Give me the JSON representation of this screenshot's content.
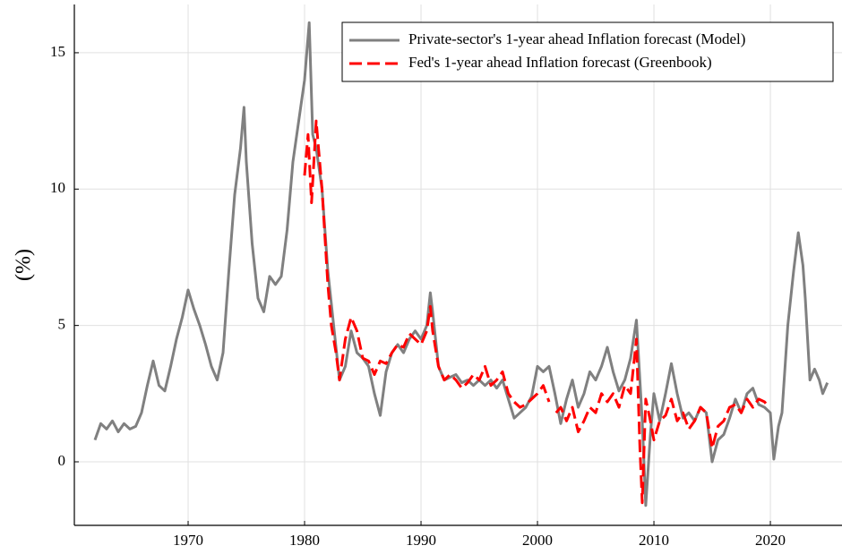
{
  "chart_data": {
    "type": "line",
    "ylabel": "(%)",
    "xlim": [
      1960.23,
      2026.15
    ],
    "ylim": [
      -2.33,
      16.77
    ],
    "xticks": [
      1970,
      1980,
      1990,
      2000,
      2010,
      2020
    ],
    "yticks": [
      0,
      5,
      10,
      15
    ],
    "grid": true,
    "legend": "upper right",
    "series": [
      {
        "name": "Private-sector's 1-year ahead Inflation forecast (Model)",
        "color": "#808080",
        "style": "solid",
        "x": [
          1962.0,
          1962.5,
          1963,
          1963.5,
          1964,
          1964.5,
          1965,
          1965.5,
          1966,
          1966.5,
          1967,
          1967.5,
          1968,
          1968.5,
          1969,
          1969.5,
          1970,
          1970.5,
          1971,
          1971.5,
          1972,
          1972.5,
          1973,
          1973.5,
          1974,
          1974.5,
          1974.8,
          1975,
          1975.5,
          1976,
          1976.5,
          1977,
          1977.5,
          1978,
          1978.5,
          1979,
          1979.5,
          1980,
          1980.4,
          1980.7,
          1981,
          1981.5,
          1982,
          1982.5,
          1983,
          1983.5,
          1984,
          1984.5,
          1985,
          1985.5,
          1986,
          1986.5,
          1987,
          1987.5,
          1988,
          1988.5,
          1989,
          1989.5,
          1990,
          1990.5,
          1990.8,
          1991,
          1991.5,
          1992,
          1992.5,
          1993,
          1993.5,
          1994,
          1994.5,
          1995,
          1995.5,
          1996,
          1996.5,
          1997,
          1997.5,
          1998,
          1998.5,
          1999,
          1999.5,
          2000,
          2000.5,
          2001,
          2001.5,
          2002,
          2002.5,
          2003,
          2003.5,
          2004,
          2004.5,
          2005,
          2005.5,
          2006,
          2006.5,
          2007,
          2007.5,
          2008,
          2008.5,
          2009,
          2009.3,
          2009.7,
          2010,
          2010.5,
          2011,
          2011.5,
          2012,
          2012.5,
          2013,
          2013.5,
          2014,
          2014.5,
          2015,
          2015.5,
          2016,
          2016.5,
          2017,
          2017.5,
          2018,
          2018.5,
          2019,
          2019.5,
          2020,
          2020.3,
          2020.7,
          2021,
          2021.5,
          2022,
          2022.4,
          2022.8,
          2023,
          2023.4,
          2023.8,
          2024.2,
          2024.5,
          2024.9
        ],
        "values": [
          0.8,
          1.4,
          1.2,
          1.5,
          1.1,
          1.4,
          1.2,
          1.3,
          1.8,
          2.8,
          3.7,
          2.8,
          2.6,
          3.5,
          4.5,
          5.3,
          6.3,
          5.6,
          5.0,
          4.3,
          3.5,
          3.0,
          4.0,
          7.0,
          9.8,
          11.5,
          13.0,
          11.0,
          8.0,
          6.0,
          5.5,
          6.8,
          6.5,
          6.8,
          8.5,
          11.0,
          12.5,
          14.0,
          16.1,
          12.0,
          11.5,
          10.0,
          7.0,
          5.0,
          3.0,
          3.5,
          4.8,
          4.0,
          3.8,
          3.5,
          2.5,
          1.7,
          3.3,
          4.0,
          4.3,
          4.0,
          4.5,
          4.8,
          4.5,
          5.0,
          6.2,
          5.5,
          3.5,
          3.0,
          3.1,
          3.2,
          2.9,
          3.0,
          2.8,
          3.0,
          2.8,
          3.0,
          2.7,
          3.0,
          2.3,
          1.6,
          1.8,
          2.0,
          2.4,
          3.5,
          3.3,
          3.5,
          2.5,
          1.4,
          2.3,
          3.0,
          2.0,
          2.5,
          3.3,
          3.0,
          3.5,
          4.2,
          3.3,
          2.6,
          3.0,
          3.8,
          5.2,
          1.5,
          -1.6,
          1.0,
          2.5,
          1.5,
          2.5,
          3.6,
          2.5,
          1.6,
          1.8,
          1.5,
          2.0,
          1.8,
          0.0,
          0.8,
          1.0,
          1.6,
          2.3,
          1.8,
          2.5,
          2.7,
          2.1,
          2.0,
          1.8,
          0.1,
          1.3,
          1.8,
          5.0,
          7.0,
          8.4,
          7.2,
          6.0,
          3.0,
          3.4,
          3.0,
          2.5,
          2.9
        ]
      },
      {
        "name": "Fed's 1-year ahead Inflation forecast (Greenbook)",
        "color": "#ff0000",
        "style": "dashed",
        "x": [
          1980.0,
          1980.3,
          1980.6,
          1981,
          1981.5,
          1982,
          1982.3,
          1982.7,
          1983,
          1983.5,
          1984,
          1984.5,
          1985,
          1985.5,
          1986,
          1986.5,
          1987,
          1987.5,
          1988,
          1988.5,
          1989,
          1989.5,
          1990,
          1990.5,
          1990.8,
          1991,
          1991.5,
          1992,
          1992.5,
          1993,
          1993.5,
          1994,
          1994.5,
          1995,
          1995.5,
          1996,
          1996.5,
          1997,
          1997.5,
          1998,
          1998.5,
          1999,
          1999.5,
          2000,
          2000.5,
          2001,
          2001.2,
          2001.6,
          2002,
          2002.5,
          2003,
          2003.5,
          2004,
          2004.5,
          2005,
          2005.5,
          2006,
          2006.5,
          2007,
          2007.5,
          2008,
          2008.5,
          2008.8,
          2009,
          2009.3,
          2009.7,
          2010,
          2010.5,
          2011,
          2011.5,
          2012,
          2012.5,
          2013,
          2013.5,
          2014,
          2014.5,
          2015,
          2015.5,
          2016,
          2016.5,
          2017,
          2017.5,
          2018,
          2018.5,
          2019,
          2019.5,
          2019.9
        ],
        "values": [
          10.5,
          12.0,
          9.5,
          12.5,
          10.0,
          6.5,
          5.0,
          4.0,
          3.0,
          4.5,
          5.3,
          4.8,
          3.8,
          3.7,
          3.2,
          3.7,
          3.6,
          4.0,
          4.3,
          4.2,
          4.7,
          4.5,
          4.3,
          4.8,
          5.7,
          4.8,
          3.5,
          3.0,
          3.2,
          3.0,
          2.7,
          2.9,
          3.2,
          3.0,
          3.5,
          2.8,
          3.0,
          3.3,
          2.5,
          2.2,
          2.0,
          2.1,
          2.3,
          2.5,
          2.8,
          2.2,
          null,
          1.8,
          2.0,
          1.5,
          2.0,
          1.1,
          1.5,
          2.0,
          1.8,
          2.5,
          2.2,
          2.5,
          2.0,
          2.8,
          2.5,
          4.5,
          0.5,
          -1.5,
          2.3,
          1.5,
          0.8,
          1.5,
          1.7,
          2.3,
          1.5,
          1.8,
          1.2,
          1.5,
          2.0,
          1.8,
          0.5,
          1.3,
          1.5,
          2.0,
          2.1,
          1.8,
          2.3,
          2.0,
          2.3,
          2.2,
          2.0
        ]
      }
    ]
  }
}
